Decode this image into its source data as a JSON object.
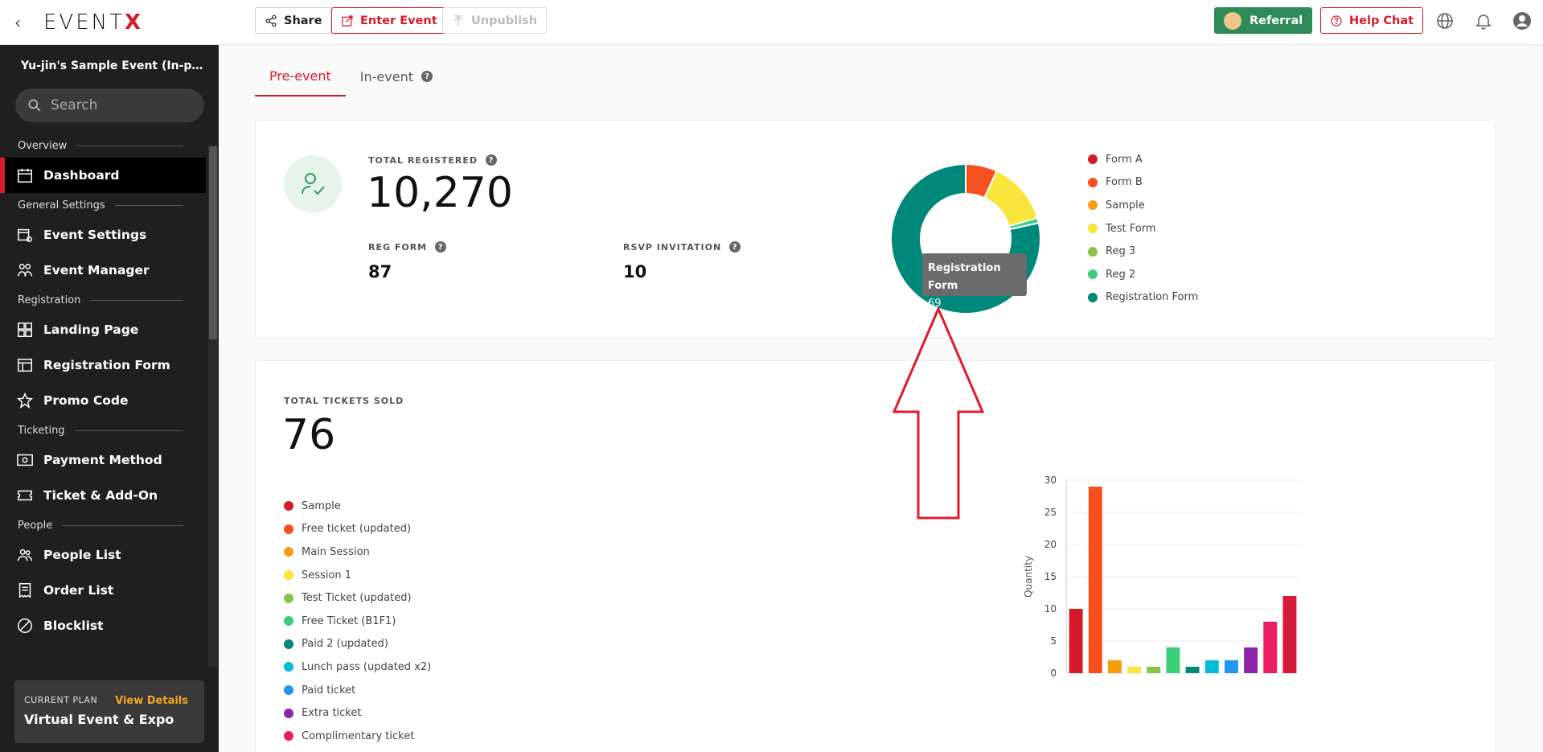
{
  "app": {
    "logo_main": "EVENT",
    "logo_x": "X",
    "back_label": "‹"
  },
  "sidebar": {
    "event_name": "Yu-jin's Sample Event (In-perso...",
    "search_placeholder": "Search",
    "sections": {
      "overview": "Overview",
      "general": "General Settings",
      "registration": "Registration",
      "ticketing": "Ticketing",
      "people": "People"
    },
    "items": {
      "dashboard": "Dashboard",
      "event_settings": "Event Settings",
      "event_manager": "Event Manager",
      "landing_page": "Landing Page",
      "registration_form": "Registration Form",
      "promo_code": "Promo Code",
      "payment_method": "Payment Method",
      "ticket_addon": "Ticket & Add-On",
      "people_list": "People List",
      "order_list": "Order List",
      "blocklist": "Blocklist"
    },
    "plan": {
      "label": "CURRENT PLAN",
      "link": "View Details",
      "name": "Virtual Event & Expo"
    }
  },
  "header": {
    "share": "Share",
    "enter_event": "Enter Event",
    "unpublish": "Unpublish",
    "referral": "Referral",
    "help_chat": "Help Chat"
  },
  "tabs": {
    "pre_event": "Pre-event",
    "in_event": "In-event"
  },
  "registrations": {
    "total_label": "TOTAL REGISTERED",
    "total_value": "10,270",
    "reg_form_label": "REG FORM",
    "reg_form_value": "87",
    "rsvp_label": "RSVP INVITATION",
    "rsvp_value": "10",
    "tooltip_name": "Registration Form",
    "tooltip_value": "69"
  },
  "tickets": {
    "total_label": "TOTAL TICKETS SOLD",
    "total_value": "76"
  },
  "colors": {
    "accent": "#d71a2a",
    "green": "#2e8b57"
  },
  "chart_data": [
    {
      "type": "pie",
      "categories": [
        "Form A",
        "Form B",
        "Sample",
        "Test Form",
        "Reg 3",
        "Reg 2",
        "Registration Form"
      ],
      "values": [
        0,
        6,
        0,
        12,
        0,
        1,
        69
      ],
      "colors": [
        "#d71a2a",
        "#f4511e",
        "#f59e0b",
        "#f9e53b",
        "#8bc34a",
        "#3ccf7a",
        "#00897b"
      ]
    },
    {
      "type": "bar",
      "categories": [
        "Sample",
        "Free ticket (updated)",
        "Main Session",
        "Session 1",
        "Test Ticket (updated)",
        "Free Ticket (B1F1)",
        "Paid 2 (updated)",
        "Lunch pass (updated x2)",
        "Paid ticket",
        "Extra ticket",
        "Complimentary ticket",
        ""
      ],
      "values": [
        10,
        29,
        2,
        1,
        1,
        4,
        1,
        2,
        2,
        4,
        8,
        12
      ],
      "colors": [
        "#d71a2a",
        "#f4511e",
        "#f59e0b",
        "#f9e53b",
        "#8bc34a",
        "#3ccf7a",
        "#00897b",
        "#00bcd4",
        "#2196f3",
        "#8e24aa",
        "#e91e63",
        "#d71a3a"
      ],
      "ylabel": "Quantity",
      "ylim": [
        0,
        30
      ],
      "yticks": [
        0,
        5,
        10,
        15,
        20,
        25,
        30
      ]
    }
  ]
}
